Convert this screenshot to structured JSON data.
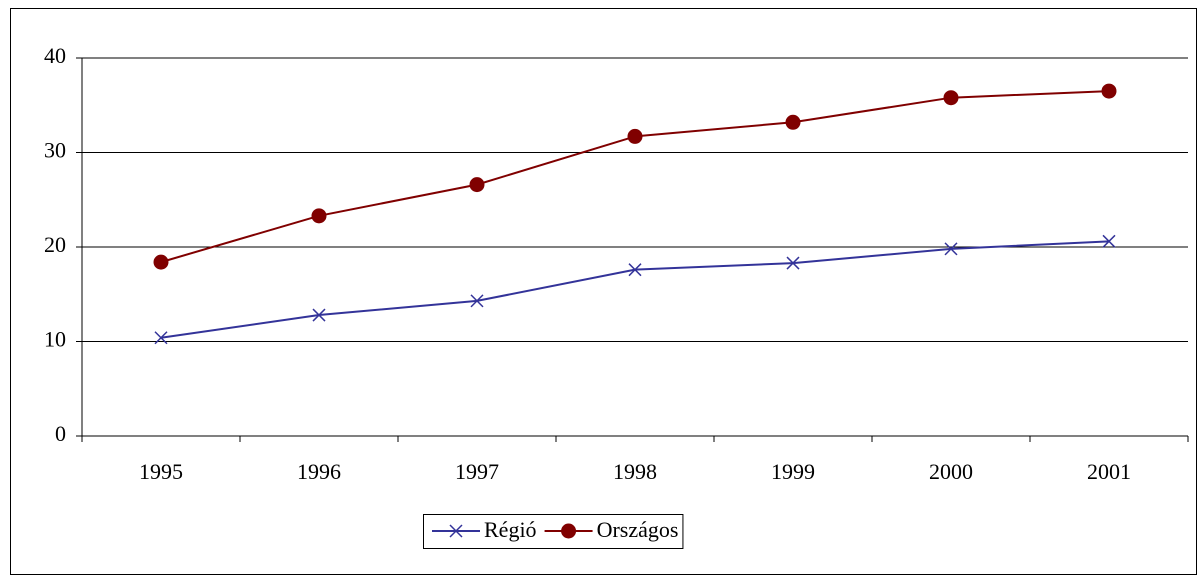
{
  "chart_data": {
    "type": "line",
    "categories": [
      "1995",
      "1996",
      "1997",
      "1998",
      "1999",
      "2000",
      "2001"
    ],
    "series": [
      {
        "name": "Régió",
        "color": "#333399",
        "marker": "x",
        "values": [
          10.4,
          12.8,
          14.3,
          17.6,
          18.3,
          19.8,
          20.6
        ]
      },
      {
        "name": "Országos",
        "color": "#800000",
        "marker": "circle",
        "values": [
          18.4,
          23.3,
          26.6,
          31.7,
          33.2,
          35.8,
          36.5
        ]
      }
    ],
    "ylim": [
      0,
      40
    ],
    "yticks": [
      0,
      10,
      20,
      30,
      40
    ],
    "grid": true,
    "legend": "bottom"
  }
}
